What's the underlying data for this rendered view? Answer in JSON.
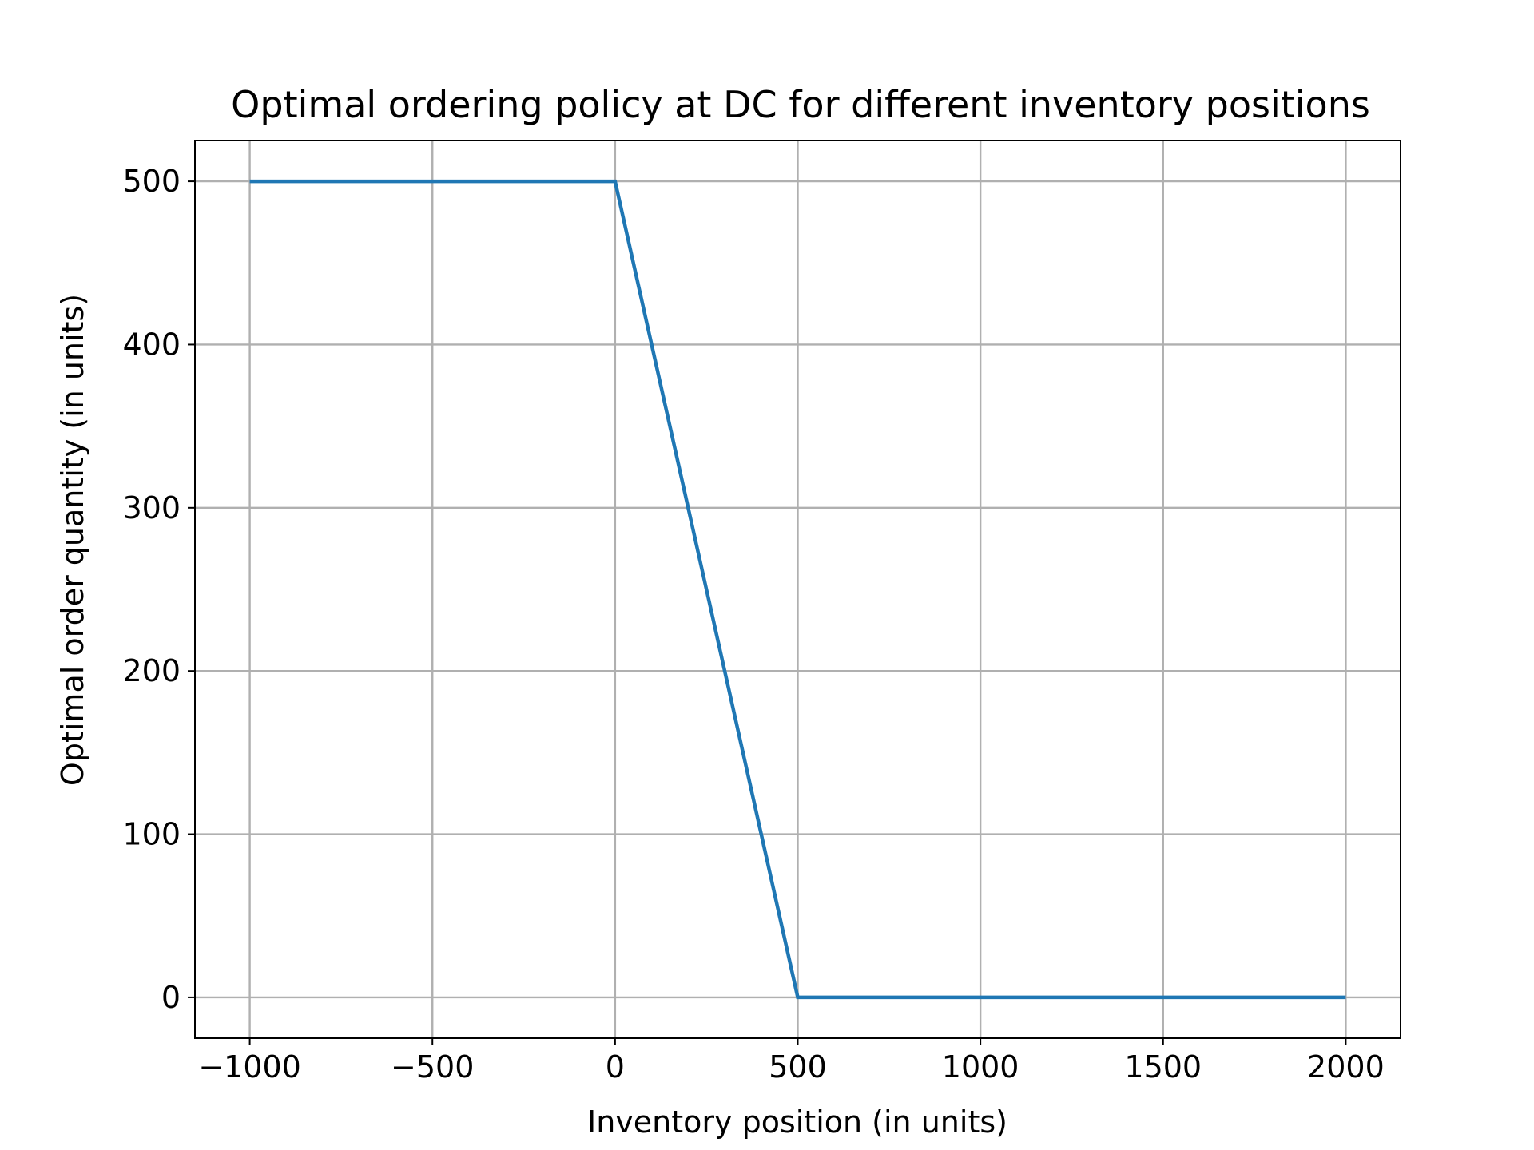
{
  "chart_data": {
    "type": "line",
    "title": "Optimal ordering policy at DC for different inventory positions",
    "xlabel": "Inventory position (in units)",
    "ylabel": "Optimal order quantity (in units)",
    "xlim": [
      -1150,
      2150
    ],
    "ylim": [
      -25,
      525
    ],
    "xticks": [
      -1000,
      -500,
      0,
      500,
      1000,
      1500,
      2000
    ],
    "xtick_labels": [
      "−1000",
      "−500",
      "0",
      "500",
      "1000",
      "1500",
      "2000"
    ],
    "yticks": [
      0,
      100,
      200,
      300,
      400,
      500
    ],
    "ytick_labels": [
      "0",
      "100",
      "200",
      "300",
      "400",
      "500"
    ],
    "grid": true,
    "legend": "none",
    "color": "#1f77b4",
    "series": [
      {
        "x": [
          -1000,
          0,
          500,
          2000
        ],
        "y": [
          500,
          500,
          0,
          0
        ]
      }
    ]
  }
}
